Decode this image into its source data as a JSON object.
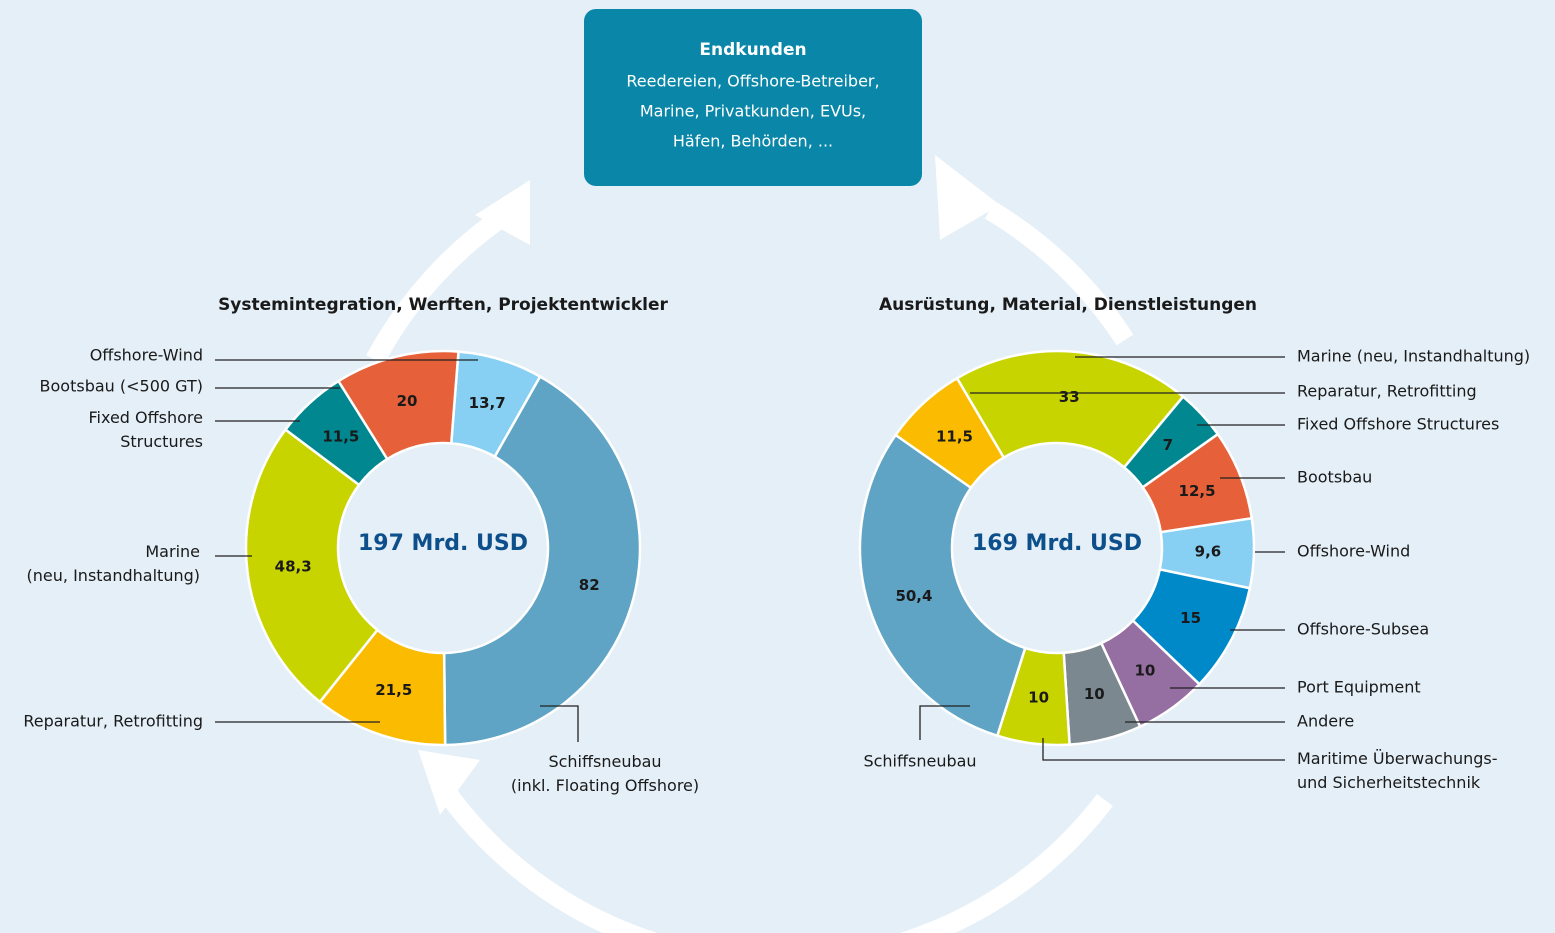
{
  "customer_box": {
    "title": "Endkunden",
    "lines": [
      "Reedereien, Offshore-Betreiber,",
      "Marine, Privatkunden, EVUs,",
      "Häfen, Behörden, ..."
    ]
  },
  "chart_data": [
    {
      "type": "pie",
      "title": "Systemintegration, Werften, Projektentwickler",
      "center_label": "197 Mrd. USD",
      "categories": [
        "Offshore-Wind",
        "Schiffsneubau\n(inkl. Floating Offshore)",
        "Reparatur, Retrofitting",
        "Marine\n(neu, Instandhaltung)",
        "Fixed Offshore\nStructures",
        "Bootsbau (<500 GT)"
      ],
      "values": [
        13.7,
        82,
        21.5,
        48.3,
        11.5,
        20
      ],
      "value_labels": [
        "13,7",
        "82",
        "21,5",
        "48,3",
        "11,5",
        "20"
      ],
      "colors": [
        "#88d0f3",
        "#5fa4c5",
        "#fbbb00",
        "#c8d400",
        "#00878f",
        "#e6603a"
      ]
    },
    {
      "type": "pie",
      "title": "Ausrüstung, Material, Dienstleistungen",
      "center_label": "169 Mrd. USD",
      "categories": [
        "Marine (neu, Instandhaltung)",
        "Fixed Offshore Structures",
        "Bootsbau",
        "Offshore-Wind",
        "Offshore-Subsea",
        "Port Equipment",
        "Andere",
        "Maritime Überwachungs-\nund Sicherheitstechnik",
        "Schiffsneubau",
        "Reparatur, Retrofitting"
      ],
      "values": [
        33,
        7,
        12.5,
        9.6,
        15,
        10,
        10,
        10,
        50.4,
        11.5
      ],
      "value_labels": [
        "33",
        "7",
        "12,5",
        "9,6",
        "15",
        "10",
        "10",
        "10",
        "50,4",
        "11,5"
      ],
      "colors": [
        "#c8d400",
        "#00878f",
        "#e6603a",
        "#88d0f3",
        "#0089c9",
        "#956ea2",
        "#7b8890",
        "#c8d400",
        "#5fa4c5",
        "#fbbb00"
      ]
    }
  ]
}
